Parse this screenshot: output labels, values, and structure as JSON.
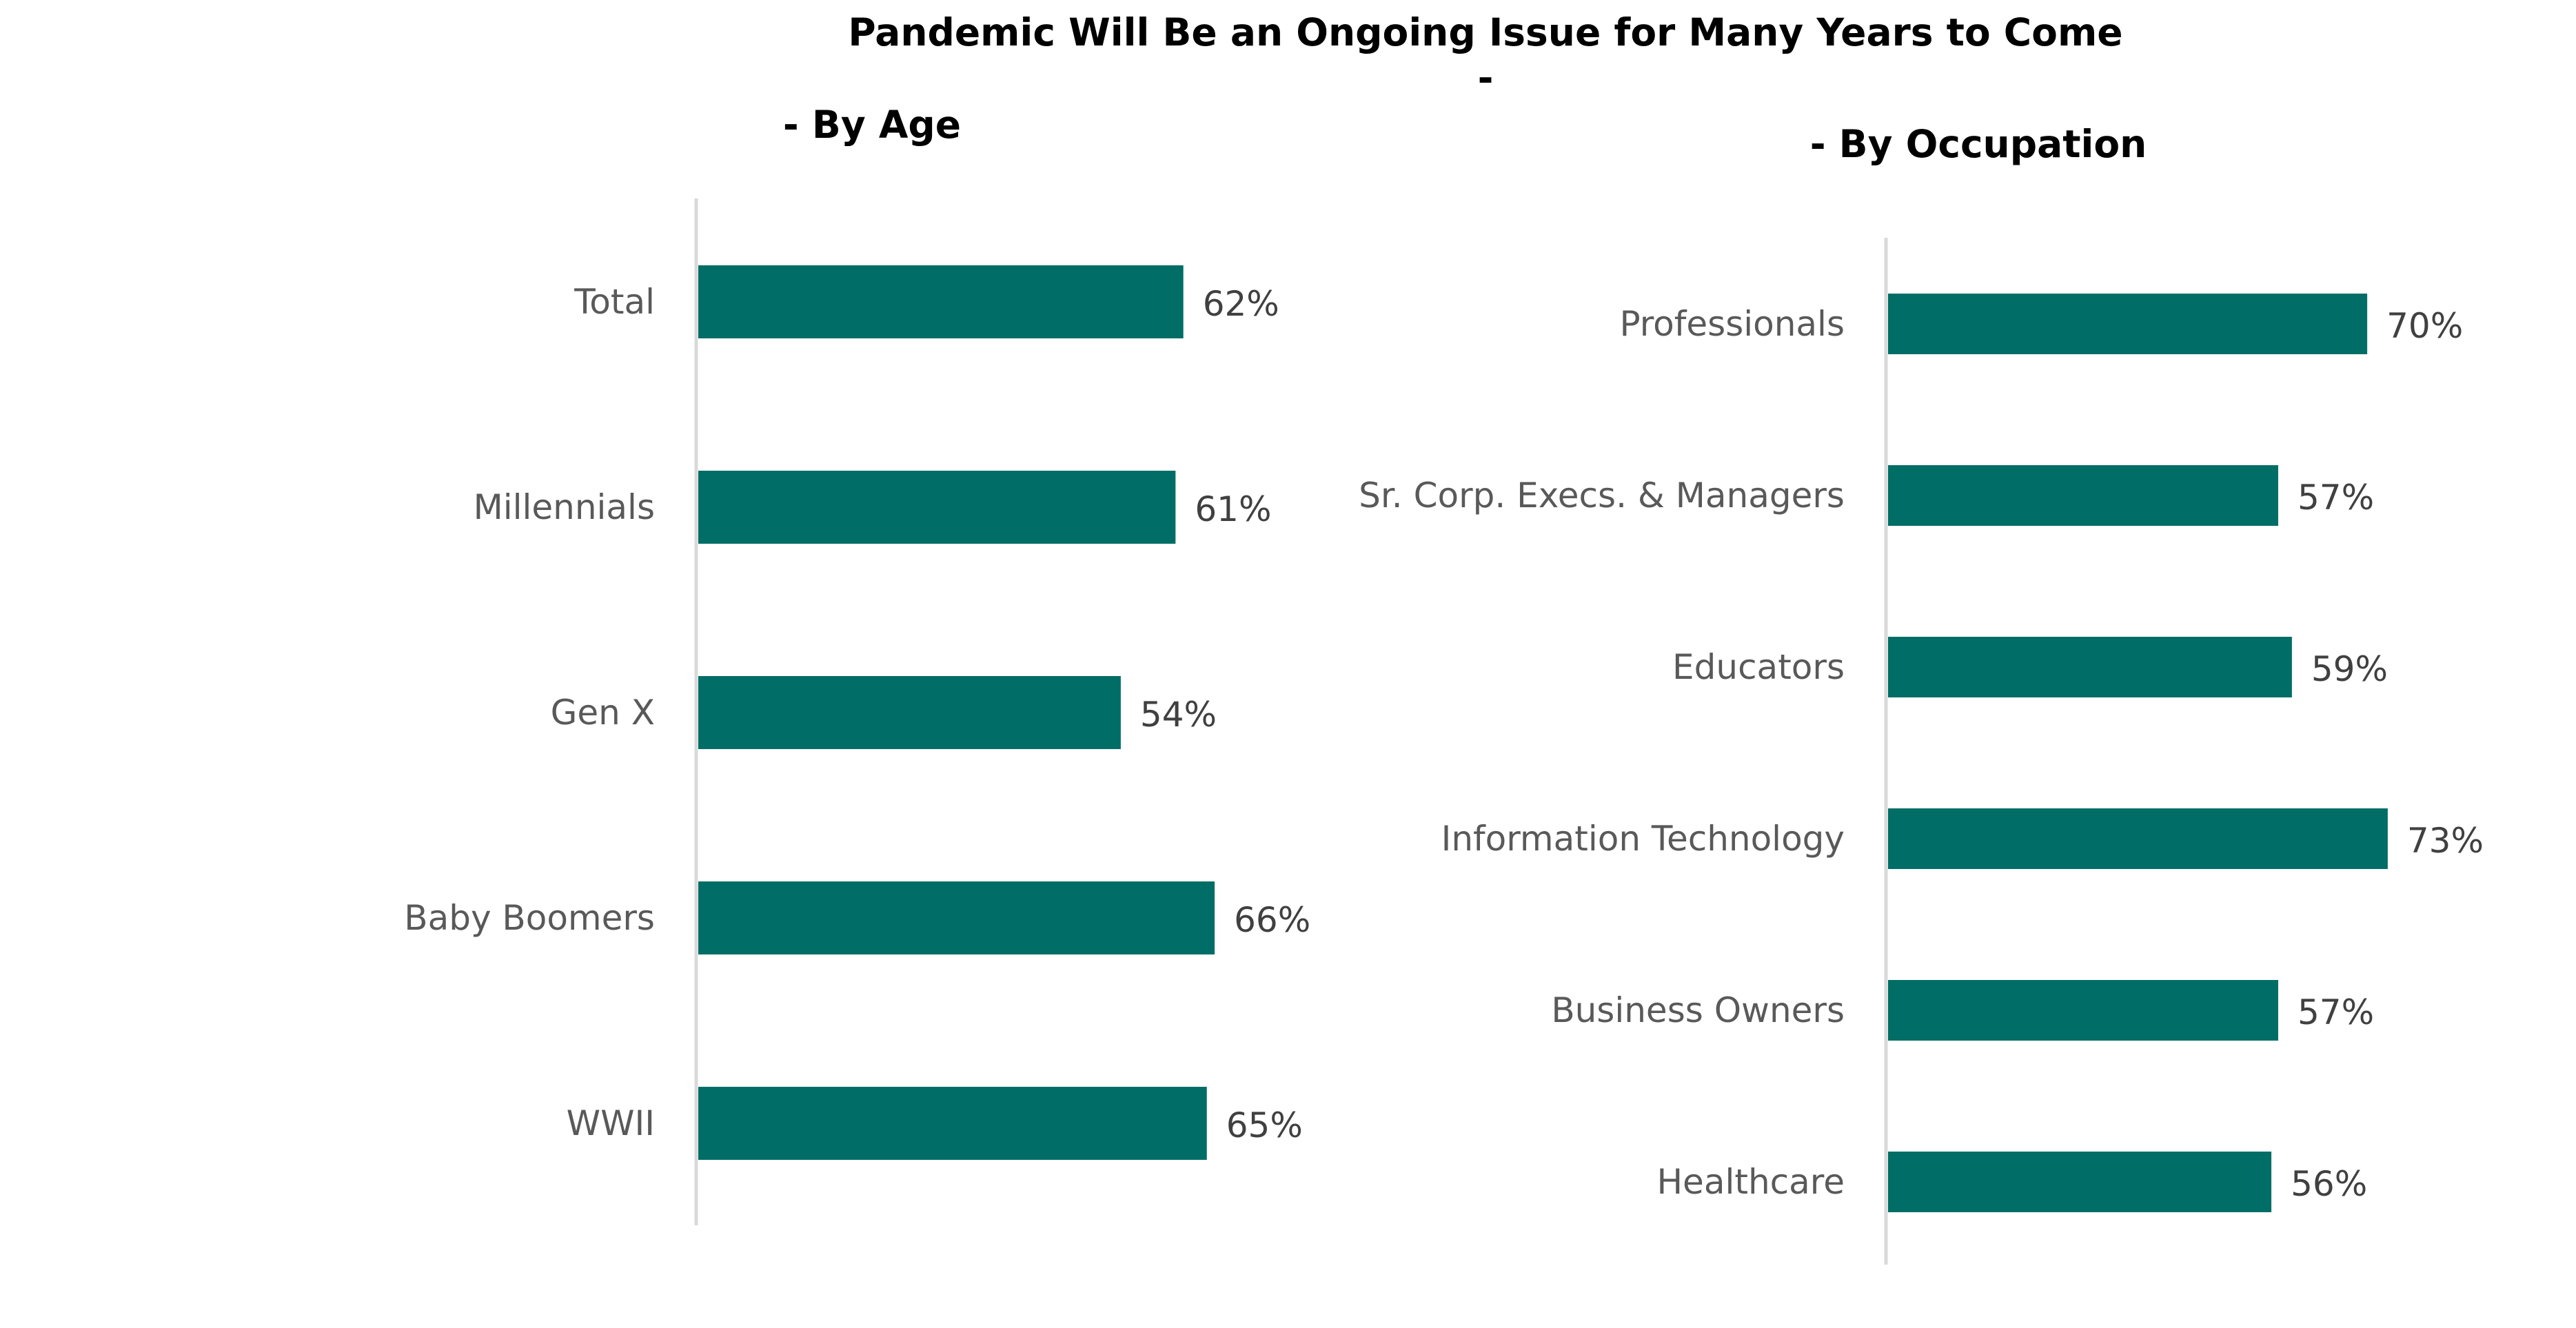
{
  "title": "Pandemic Will Be an Ongoing Issue for Many Years to Come",
  "title_separator": "-",
  "colors": {
    "bar": "#006E66",
    "axis": "#d9d9d9",
    "category_text": "#595959",
    "value_text": "#404040"
  },
  "chart_data": [
    {
      "type": "bar",
      "orientation": "horizontal",
      "title": "- By Age",
      "categories": [
        "Total",
        "Millennials",
        "Gen X",
        "Baby Boomers",
        "WWII"
      ],
      "values": [
        62,
        61,
        54,
        66,
        65
      ],
      "value_labels": [
        "62%",
        "61%",
        "54%",
        "66%",
        "65%"
      ],
      "xlim": [
        0,
        100
      ],
      "grid": false,
      "legend": "none"
    },
    {
      "type": "bar",
      "orientation": "horizontal",
      "title": "- By Occupation",
      "categories": [
        "Professionals",
        "Sr. Corp. Execs. & Managers",
        "Educators",
        "Information Technology",
        "Business Owners",
        "Healthcare"
      ],
      "values": [
        70,
        57,
        59,
        73,
        57,
        56
      ],
      "value_labels": [
        "70%",
        "57%",
        "59%",
        "73%",
        "57%",
        "56%"
      ],
      "xlim": [
        0,
        100
      ],
      "grid": false,
      "legend": "none"
    }
  ]
}
